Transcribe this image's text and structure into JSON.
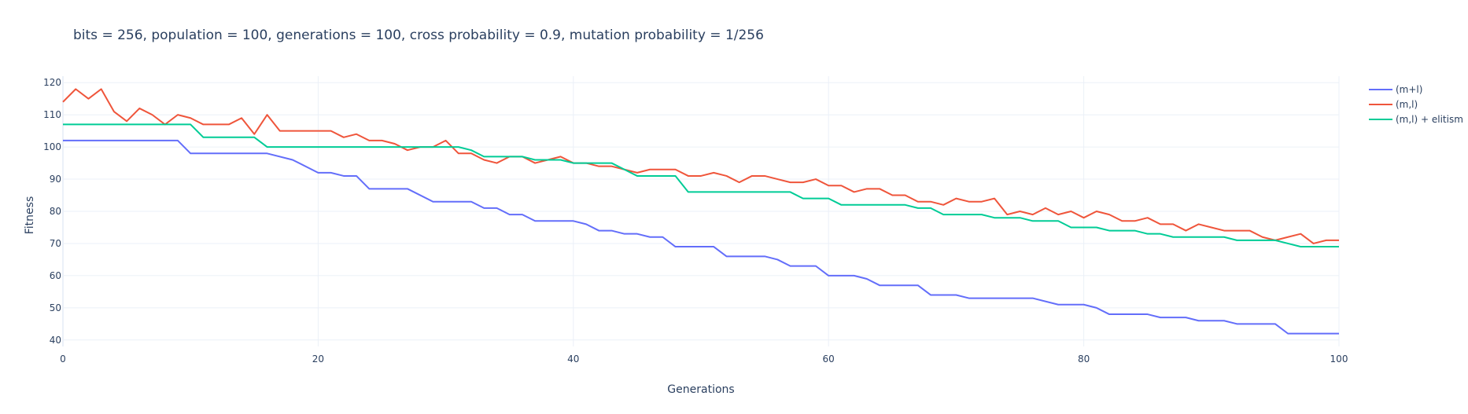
{
  "chart_data": {
    "type": "line",
    "title": "bits = 256, population = 100, generations = 100, cross probability = 0.9, mutation probability = 1/256",
    "xlabel": "Generations",
    "ylabel": "Fitness",
    "xlim": [
      0,
      100
    ],
    "ylim": [
      38,
      122
    ],
    "x_ticks": [
      0,
      20,
      40,
      60,
      80,
      100
    ],
    "y_ticks": [
      40,
      50,
      60,
      70,
      80,
      90,
      100,
      110,
      120
    ],
    "grid": true,
    "legend_position": "top-right",
    "series": [
      {
        "name": "(m+l)",
        "color": "#636efa",
        "points": [
          [
            0,
            102
          ],
          [
            9,
            102
          ],
          [
            10,
            98
          ],
          [
            16,
            98
          ],
          [
            18,
            96
          ],
          [
            20,
            92
          ],
          [
            21,
            92
          ],
          [
            22,
            91
          ],
          [
            23,
            91
          ],
          [
            24,
            87
          ],
          [
            27,
            87
          ],
          [
            29,
            83
          ],
          [
            32,
            83
          ],
          [
            33,
            81
          ],
          [
            34,
            81
          ],
          [
            35,
            79
          ],
          [
            36,
            79
          ],
          [
            37,
            77
          ],
          [
            40,
            77
          ],
          [
            41,
            76
          ],
          [
            42,
            74
          ],
          [
            43,
            74
          ],
          [
            44,
            73
          ],
          [
            45,
            73
          ],
          [
            46,
            72
          ],
          [
            47,
            72
          ],
          [
            48,
            69
          ],
          [
            51,
            69
          ],
          [
            52,
            66
          ],
          [
            55,
            66
          ],
          [
            56,
            65
          ],
          [
            57,
            63
          ],
          [
            59,
            63
          ],
          [
            60,
            60
          ],
          [
            62,
            60
          ],
          [
            63,
            59
          ],
          [
            64,
            57
          ],
          [
            67,
            57
          ],
          [
            68,
            54
          ],
          [
            70,
            54
          ],
          [
            71,
            53
          ],
          [
            76,
            53
          ],
          [
            78,
            51
          ],
          [
            80,
            51
          ],
          [
            81,
            50
          ],
          [
            82,
            48
          ],
          [
            85,
            48
          ],
          [
            86,
            47
          ],
          [
            88,
            47
          ],
          [
            89,
            46
          ],
          [
            91,
            46
          ],
          [
            92,
            45
          ],
          [
            95,
            45
          ],
          [
            96,
            42
          ],
          [
            100,
            42
          ]
        ]
      },
      {
        "name": "(m,l)",
        "color": "#ef553b",
        "points": [
          [
            0,
            114
          ],
          [
            1,
            118
          ],
          [
            2,
            115
          ],
          [
            3,
            118
          ],
          [
            4,
            111
          ],
          [
            5,
            108
          ],
          [
            6,
            112
          ],
          [
            7,
            110
          ],
          [
            8,
            107
          ],
          [
            9,
            110
          ],
          [
            10,
            109
          ],
          [
            11,
            107
          ],
          [
            13,
            107
          ],
          [
            14,
            109
          ],
          [
            15,
            104
          ],
          [
            16,
            110
          ],
          [
            17,
            105
          ],
          [
            21,
            105
          ],
          [
            22,
            103
          ],
          [
            23,
            104
          ],
          [
            24,
            102
          ],
          [
            25,
            102
          ],
          [
            26,
            101
          ],
          [
            27,
            99
          ],
          [
            28,
            100
          ],
          [
            29,
            100
          ],
          [
            30,
            102
          ],
          [
            31,
            98
          ],
          [
            32,
            98
          ],
          [
            33,
            96
          ],
          [
            34,
            95
          ],
          [
            35,
            97
          ],
          [
            36,
            97
          ],
          [
            37,
            95
          ],
          [
            38,
            96
          ],
          [
            39,
            97
          ],
          [
            40,
            95
          ],
          [
            41,
            95
          ],
          [
            42,
            94
          ],
          [
            43,
            94
          ],
          [
            44,
            93
          ],
          [
            45,
            92
          ],
          [
            46,
            93
          ],
          [
            48,
            93
          ],
          [
            49,
            91
          ],
          [
            50,
            91
          ],
          [
            51,
            92
          ],
          [
            52,
            91
          ],
          [
            53,
            89
          ],
          [
            54,
            91
          ],
          [
            55,
            91
          ],
          [
            56,
            90
          ],
          [
            57,
            89
          ],
          [
            58,
            89
          ],
          [
            59,
            90
          ],
          [
            60,
            88
          ],
          [
            61,
            88
          ],
          [
            62,
            86
          ],
          [
            63,
            87
          ],
          [
            64,
            87
          ],
          [
            65,
            85
          ],
          [
            66,
            85
          ],
          [
            67,
            83
          ],
          [
            68,
            83
          ],
          [
            69,
            82
          ],
          [
            70,
            84
          ],
          [
            71,
            83
          ],
          [
            72,
            83
          ],
          [
            73,
            84
          ],
          [
            74,
            79
          ],
          [
            75,
            80
          ],
          [
            76,
            79
          ],
          [
            77,
            81
          ],
          [
            78,
            79
          ],
          [
            79,
            80
          ],
          [
            80,
            78
          ],
          [
            81,
            80
          ],
          [
            82,
            79
          ],
          [
            83,
            77
          ],
          [
            84,
            77
          ],
          [
            85,
            78
          ],
          [
            86,
            76
          ],
          [
            87,
            76
          ],
          [
            88,
            74
          ],
          [
            89,
            76
          ],
          [
            90,
            75
          ],
          [
            91,
            74
          ],
          [
            93,
            74
          ],
          [
            94,
            72
          ],
          [
            95,
            71
          ],
          [
            96,
            72
          ],
          [
            97,
            73
          ],
          [
            98,
            70
          ],
          [
            99,
            71
          ],
          [
            100,
            71
          ]
        ]
      },
      {
        "name": "(m,l) + elitism",
        "color": "#00cc96",
        "points": [
          [
            0,
            107
          ],
          [
            10,
            107
          ],
          [
            11,
            103
          ],
          [
            15,
            103
          ],
          [
            16,
            100
          ],
          [
            31,
            100
          ],
          [
            32,
            99
          ],
          [
            33,
            97
          ],
          [
            36,
            97
          ],
          [
            37,
            96
          ],
          [
            39,
            96
          ],
          [
            40,
            95
          ],
          [
            43,
            95
          ],
          [
            44,
            93
          ],
          [
            45,
            91
          ],
          [
            48,
            91
          ],
          [
            49,
            86
          ],
          [
            57,
            86
          ],
          [
            58,
            84
          ],
          [
            60,
            84
          ],
          [
            61,
            82
          ],
          [
            66,
            82
          ],
          [
            67,
            81
          ],
          [
            68,
            81
          ],
          [
            69,
            79
          ],
          [
            72,
            79
          ],
          [
            73,
            78
          ],
          [
            75,
            78
          ],
          [
            76,
            77
          ],
          [
            78,
            77
          ],
          [
            79,
            75
          ],
          [
            81,
            75
          ],
          [
            82,
            74
          ],
          [
            84,
            74
          ],
          [
            85,
            73
          ],
          [
            86,
            73
          ],
          [
            87,
            72
          ],
          [
            91,
            72
          ],
          [
            92,
            71
          ],
          [
            95,
            71
          ],
          [
            96,
            70
          ],
          [
            97,
            69
          ],
          [
            100,
            69
          ]
        ]
      }
    ]
  }
}
